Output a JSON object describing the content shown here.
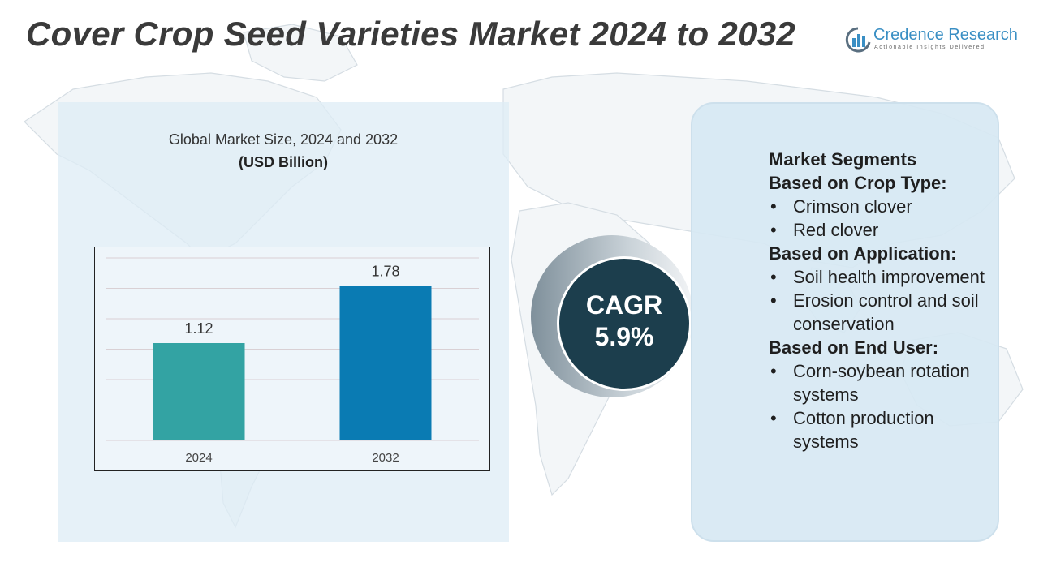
{
  "title": "Cover Crop Seed Varieties Market 2024 to 2032",
  "logo": {
    "name": "Credence Research",
    "tagline": "Actionable Insights Delivered",
    "icon": "bar-chart-c-logo-icon"
  },
  "chart": {
    "title": "Global Market Size, 2024 and 2032",
    "unit": "(USD Billion)"
  },
  "chart_data": {
    "type": "bar",
    "title": "Global Market Size, 2024 and 2032",
    "ylabel": "USD Billion",
    "categories": [
      "2024",
      "2032"
    ],
    "values": [
      1.12,
      1.78
    ],
    "value_labels": [
      "1.12",
      "1.78"
    ],
    "colors": [
      "#33a3a3",
      "#0a7bb3"
    ],
    "ylim": [
      0,
      2.1
    ],
    "grid": true,
    "legend": "none"
  },
  "cagr": {
    "label": "CAGR",
    "value": "5.9%"
  },
  "segments": {
    "heading": "Market Segments",
    "groups": [
      {
        "title": "Based on Crop Type:",
        "items": [
          "Crimson clover",
          "Red clover"
        ]
      },
      {
        "title": "Based on Application:",
        "items": [
          "Soil health improvement",
          "Erosion control and soil conservation"
        ]
      },
      {
        "title": "Based on End User:",
        "items": [
          "Corn-soybean rotation systems",
          "Cotton production systems"
        ]
      }
    ]
  },
  "colors": {
    "title": "#3a3a3a",
    "brand": "#3a8fc4",
    "cagr_circle": "#1c3e4d",
    "panel": "#deecf6"
  }
}
